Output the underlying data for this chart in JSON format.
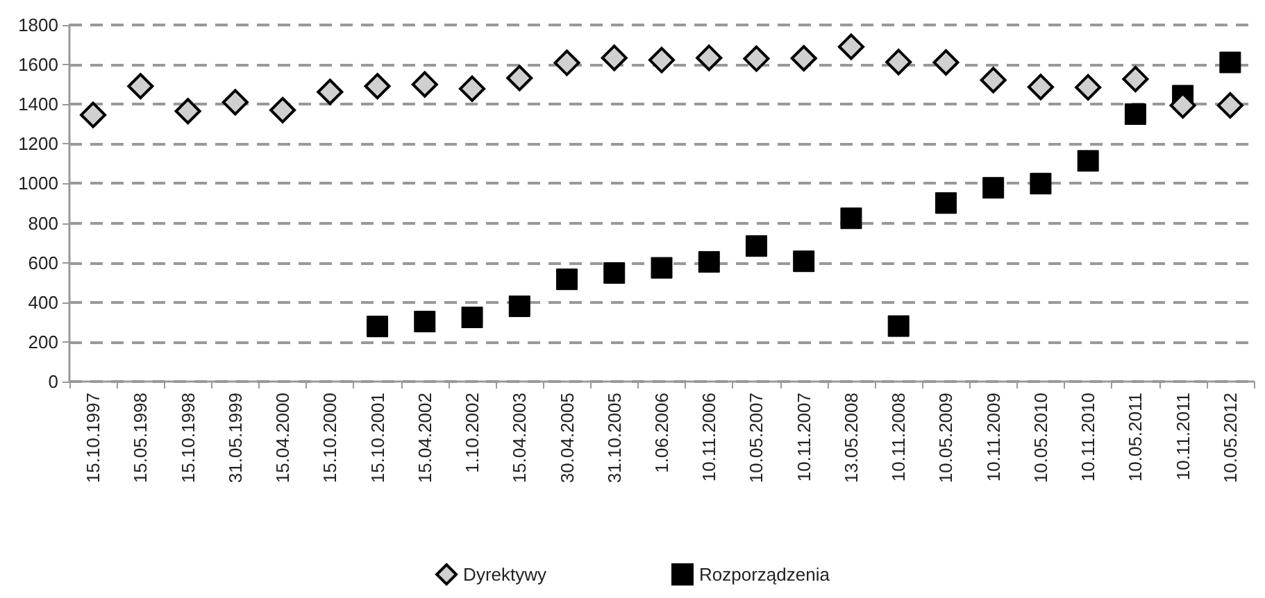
{
  "chart_data": {
    "type": "scatter",
    "categories": [
      "15.10.1997",
      "15.05.1998",
      "15.10.1998",
      "31.05.1999",
      "15.04.2000",
      "15.10.2000",
      "15.10.2001",
      "15.04.2002",
      "1.10.2002",
      "15.04.2003",
      "30.04.2005",
      "31.10.2005",
      "1.06.2006",
      "10.11.2006",
      "10.05.2007",
      "10.11.2007",
      "13.05.2008",
      "10.11.2008",
      "10.05.2009",
      "10.11.2009",
      "10.05.2010",
      "10.11.2010",
      "10.05.2011",
      "10.11.2011",
      "10.05.2012"
    ],
    "series": [
      {
        "name": "Dyrektywy",
        "color": "#d0d0d0",
        "marker": "diamond",
        "values": [
          1346,
          1491,
          1365,
          1410,
          1370,
          1462,
          1491,
          1500,
          1478,
          1532,
          1609,
          1634,
          1623,
          1634,
          1630,
          1632,
          1690,
          1613,
          1611,
          1522,
          1487,
          1485,
          1527,
          1394,
          1394
        ]
      },
      {
        "name": "Rozporządzenia",
        "color": "#000000",
        "marker": "square",
        "values": [
          null,
          null,
          null,
          null,
          null,
          null,
          278,
          303,
          324,
          380,
          516,
          548,
          574,
          604,
          684,
          607,
          824,
          280,
          901,
          978,
          999,
          1114,
          1350,
          1443,
          1611
        ]
      }
    ],
    "ylim": [
      0,
      1800
    ],
    "yticks": [
      0,
      200,
      400,
      600,
      800,
      1000,
      1200,
      1400,
      1600,
      1800
    ],
    "grid": "y",
    "legend": "bottom"
  }
}
